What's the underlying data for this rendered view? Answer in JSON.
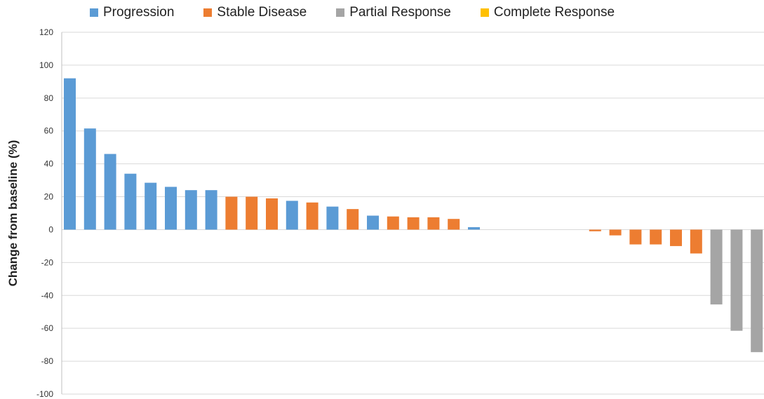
{
  "chart_data": {
    "type": "bar",
    "title": "",
    "xlabel": "",
    "ylabel": "Change from baseline (%)",
    "ylim": [
      -100,
      120
    ],
    "yticks": [
      120,
      100,
      80,
      60,
      40,
      20,
      0,
      -20,
      -40,
      -60,
      -80,
      -100
    ],
    "grid": true,
    "legend_position": "top",
    "legend": [
      {
        "label": "Progression",
        "color": "#5B9BD5"
      },
      {
        "label": "Stable Disease",
        "color": "#ED7D31"
      },
      {
        "label": "Partial Response",
        "color": "#A5A5A5"
      },
      {
        "label": "Complete Response",
        "color": "#FFC000"
      }
    ],
    "bars": [
      {
        "value": 92,
        "response": "Progression"
      },
      {
        "value": 61.5,
        "response": "Progression"
      },
      {
        "value": 46,
        "response": "Progression"
      },
      {
        "value": 34,
        "response": "Progression"
      },
      {
        "value": 28.5,
        "response": "Progression"
      },
      {
        "value": 26,
        "response": "Progression"
      },
      {
        "value": 24,
        "response": "Progression"
      },
      {
        "value": 24,
        "response": "Progression"
      },
      {
        "value": 20,
        "response": "Stable Disease"
      },
      {
        "value": 20,
        "response": "Stable Disease"
      },
      {
        "value": 19,
        "response": "Stable Disease"
      },
      {
        "value": 17.5,
        "response": "Progression"
      },
      {
        "value": 16.5,
        "response": "Stable Disease"
      },
      {
        "value": 14,
        "response": "Progression"
      },
      {
        "value": 12.5,
        "response": "Stable Disease"
      },
      {
        "value": 8.5,
        "response": "Progression"
      },
      {
        "value": 8,
        "response": "Stable Disease"
      },
      {
        "value": 7.5,
        "response": "Stable Disease"
      },
      {
        "value": 7.5,
        "response": "Stable Disease"
      },
      {
        "value": 6.5,
        "response": "Stable Disease"
      },
      {
        "value": 1.5,
        "response": "Progression"
      },
      {
        "value": 0,
        "response": "Stable Disease"
      },
      {
        "value": 0,
        "response": "Stable Disease"
      },
      {
        "value": 0,
        "response": "Stable Disease"
      },
      {
        "value": 0,
        "response": "Stable Disease"
      },
      {
        "value": 0,
        "response": "Stable Disease"
      },
      {
        "value": -1,
        "response": "Stable Disease"
      },
      {
        "value": -3.5,
        "response": "Stable Disease"
      },
      {
        "value": -9,
        "response": "Stable Disease"
      },
      {
        "value": -9,
        "response": "Stable Disease"
      },
      {
        "value": -10,
        "response": "Stable Disease"
      },
      {
        "value": -14.5,
        "response": "Stable Disease"
      },
      {
        "value": -45.5,
        "response": "Partial Response"
      },
      {
        "value": -61.5,
        "response": "Partial Response"
      },
      {
        "value": -74.5,
        "response": "Partial Response"
      }
    ]
  }
}
